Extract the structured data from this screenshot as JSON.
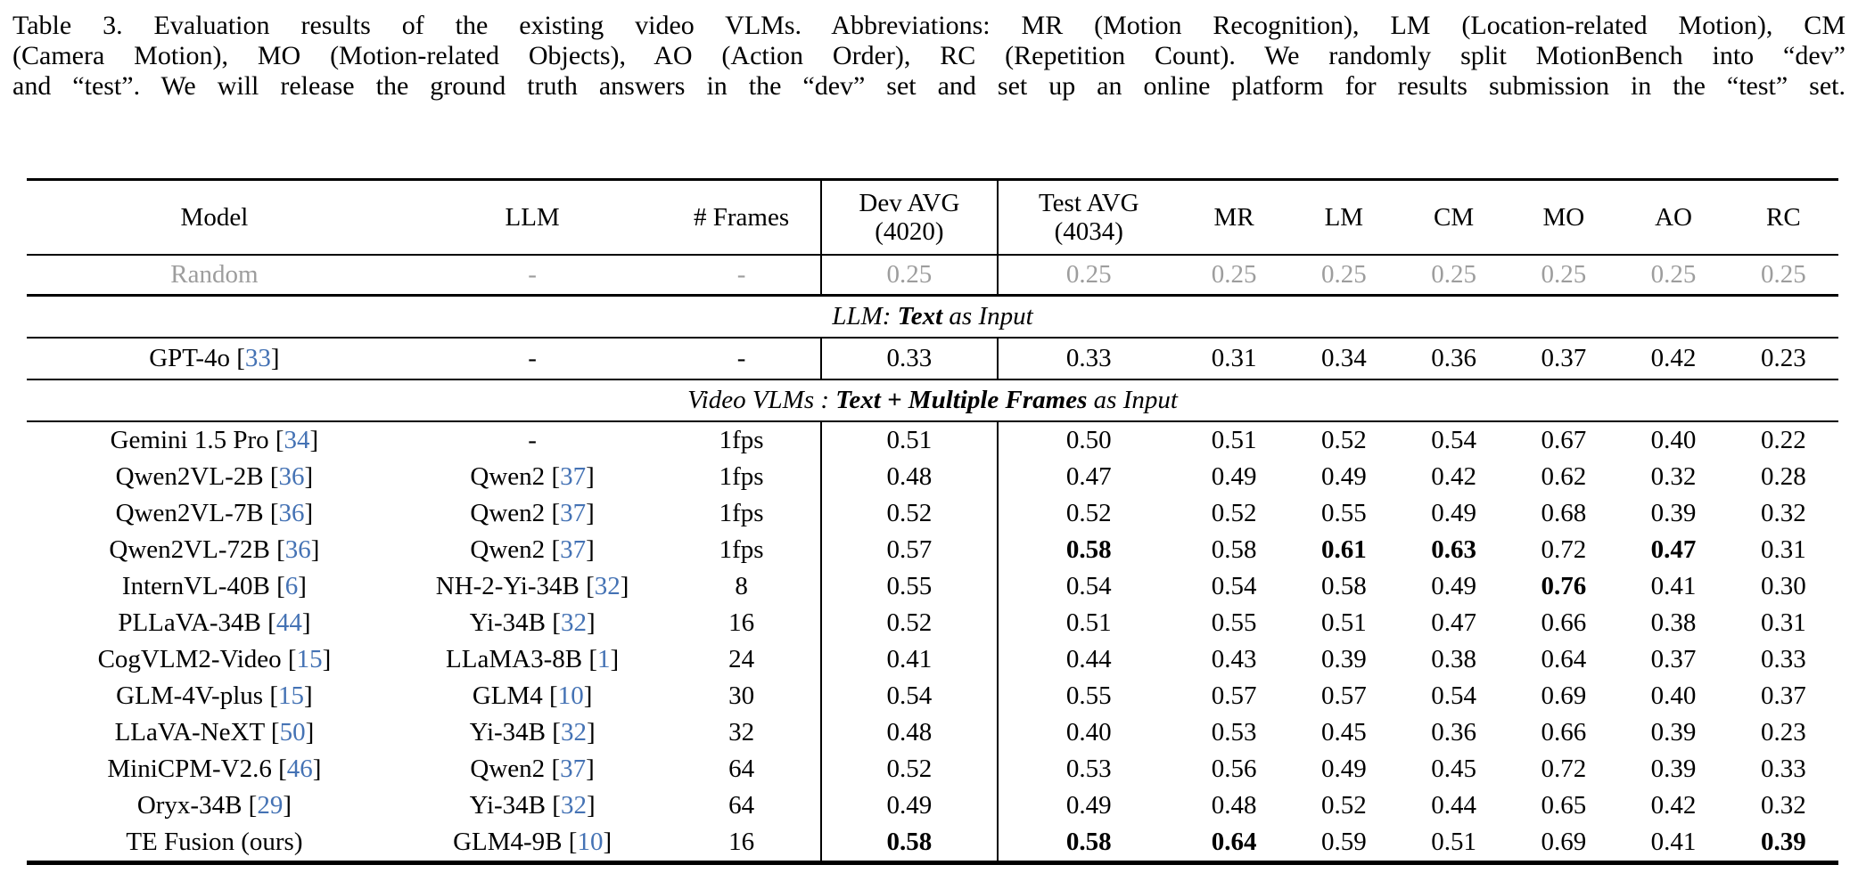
{
  "caption": {
    "lines": [
      "Table 3.  Evaluation results of the existing video VLMs.  Abbreviations: MR (Motion Recognition), LM (Location-related Motion), CM",
      "(Camera Motion), MO (Motion-related Objects), AO (Action Order), RC (Repetition Count). We randomly split MotionBench into “dev”",
      "and “test”. We will release the ground truth answers in the “dev” set and set up an online platform for results submission in the “test” set."
    ]
  },
  "colors": {
    "citation_blue": "#4472b4",
    "muted_gray": "#9d9d9d",
    "rule_black": "#000000"
  },
  "table": {
    "headers": [
      {
        "label": "Model"
      },
      {
        "label": "LLM"
      },
      {
        "label": "# Frames"
      },
      {
        "label": "Dev AVG",
        "sub": "(4020)"
      },
      {
        "label": "Test AVG",
        "sub": "(4034)"
      },
      {
        "label": "MR"
      },
      {
        "label": "LM"
      },
      {
        "label": "CM"
      },
      {
        "label": "MO"
      },
      {
        "label": "AO"
      },
      {
        "label": "RC"
      }
    ],
    "value_columns": [
      "dev_avg",
      "test_avg",
      "mr",
      "lm",
      "cm",
      "mo",
      "ao",
      "rc"
    ],
    "rows": [
      {
        "type": "data",
        "style": "row-random",
        "model": {
          "name": "Random"
        },
        "llm": {
          "name": "-"
        },
        "frames": "-",
        "values": [
          "0.25",
          "0.25",
          "0.25",
          "0.25",
          "0.25",
          "0.25",
          "0.25",
          "0.25"
        ],
        "bold": []
      },
      {
        "type": "section",
        "prefix": "LLM: ",
        "bold": "Text",
        "suffix": " as Input"
      },
      {
        "type": "data",
        "style": "row-gpt",
        "model": {
          "name": "GPT-4o",
          "cite": "33"
        },
        "llm": {
          "name": "-"
        },
        "frames": "-",
        "values": [
          "0.33",
          "0.33",
          "0.31",
          "0.34",
          "0.36",
          "0.37",
          "0.42",
          "0.23"
        ],
        "bold": []
      },
      {
        "type": "section",
        "prefix": "Video VLMs : ",
        "bold": "Text + Multiple Frames",
        "suffix": " as Input"
      },
      {
        "type": "data",
        "model": {
          "name": "Gemini 1.5 Pro",
          "cite": "34"
        },
        "llm": {
          "name": "-"
        },
        "frames": "1fps",
        "values": [
          "0.51",
          "0.50",
          "0.51",
          "0.52",
          "0.54",
          "0.67",
          "0.40",
          "0.22"
        ],
        "bold": []
      },
      {
        "type": "data",
        "model": {
          "name": "Qwen2VL-2B",
          "cite": "36"
        },
        "llm": {
          "name": "Qwen2",
          "cite": "37"
        },
        "frames": "1fps",
        "values": [
          "0.48",
          "0.47",
          "0.49",
          "0.49",
          "0.42",
          "0.62",
          "0.32",
          "0.28"
        ],
        "bold": []
      },
      {
        "type": "data",
        "model": {
          "name": "Qwen2VL-7B",
          "cite": "36"
        },
        "llm": {
          "name": "Qwen2",
          "cite": "37"
        },
        "frames": "1fps",
        "values": [
          "0.52",
          "0.52",
          "0.52",
          "0.55",
          "0.49",
          "0.68",
          "0.39",
          "0.32"
        ],
        "bold": []
      },
      {
        "type": "data",
        "model": {
          "name": "Qwen2VL-72B",
          "cite": "36"
        },
        "llm": {
          "name": "Qwen2",
          "cite": "37"
        },
        "frames": "1fps",
        "values": [
          "0.57",
          "0.58",
          "0.58",
          "0.61",
          "0.63",
          "0.72",
          "0.47",
          "0.31"
        ],
        "bold": [
          1,
          3,
          4,
          6
        ]
      },
      {
        "type": "data",
        "model": {
          "name": "InternVL-40B",
          "cite": "6"
        },
        "llm": {
          "name": "NH-2-Yi-34B",
          "cite": "32"
        },
        "frames": "8",
        "values": [
          "0.55",
          "0.54",
          "0.54",
          "0.58",
          "0.49",
          "0.76",
          "0.41",
          "0.30"
        ],
        "bold": [
          5
        ]
      },
      {
        "type": "data",
        "model": {
          "name": "PLLaVA-34B",
          "cite": "44"
        },
        "llm": {
          "name": "Yi-34B",
          "cite": "32"
        },
        "frames": "16",
        "values": [
          "0.52",
          "0.51",
          "0.55",
          "0.51",
          "0.47",
          "0.66",
          "0.38",
          "0.31"
        ],
        "bold": []
      },
      {
        "type": "data",
        "model": {
          "name": "CogVLM2-Video",
          "cite": "15"
        },
        "llm": {
          "name": "LLaMA3-8B",
          "cite": "1"
        },
        "frames": "24",
        "values": [
          "0.41",
          "0.44",
          "0.43",
          "0.39",
          "0.38",
          "0.64",
          "0.37",
          "0.33"
        ],
        "bold": []
      },
      {
        "type": "data",
        "model": {
          "name": "GLM-4V-plus",
          "cite": "15"
        },
        "llm": {
          "name": "GLM4",
          "cite": "10"
        },
        "frames": "30",
        "values": [
          "0.54",
          "0.55",
          "0.57",
          "0.57",
          "0.54",
          "0.69",
          "0.40",
          "0.37"
        ],
        "bold": []
      },
      {
        "type": "data",
        "model": {
          "name": "LLaVA-NeXT",
          "cite": "50"
        },
        "llm": {
          "name": "Yi-34B",
          "cite": "32"
        },
        "frames": "32",
        "values": [
          "0.48",
          "0.40",
          "0.53",
          "0.45",
          "0.36",
          "0.66",
          "0.39",
          "0.23"
        ],
        "bold": []
      },
      {
        "type": "data",
        "model": {
          "name": "MiniCPM-V2.6",
          "cite": "46"
        },
        "llm": {
          "name": "Qwen2",
          "cite": "37"
        },
        "frames": "64",
        "values": [
          "0.52",
          "0.53",
          "0.56",
          "0.49",
          "0.45",
          "0.72",
          "0.39",
          "0.33"
        ],
        "bold": []
      },
      {
        "type": "data",
        "model": {
          "name": "Oryx-34B",
          "cite": "29"
        },
        "llm": {
          "name": "Yi-34B",
          "cite": "32"
        },
        "frames": "64",
        "values": [
          "0.49",
          "0.49",
          "0.48",
          "0.52",
          "0.44",
          "0.65",
          "0.42",
          "0.32"
        ],
        "bold": []
      },
      {
        "type": "data",
        "model": {
          "name": "TE Fusion (ours)"
        },
        "llm": {
          "name": "GLM4-9B",
          "cite": "10"
        },
        "frames": "16",
        "values": [
          "0.58",
          "0.58",
          "0.64",
          "0.59",
          "0.51",
          "0.69",
          "0.41",
          "0.39"
        ],
        "bold": [
          0,
          1,
          2,
          7
        ]
      }
    ]
  }
}
